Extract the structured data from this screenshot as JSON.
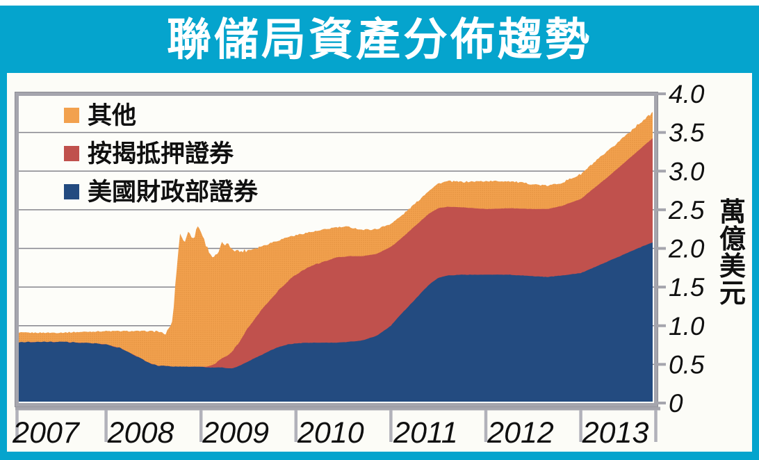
{
  "title": "聯儲局資產分佈趨勢",
  "colors": {
    "background": "#05A4CD",
    "panel": "#FCFCF7",
    "plot_bg": "#FDFDF9",
    "grid": "#84848C",
    "frame": "#A5A5AD",
    "frame_outline": "#8B8B93",
    "tick": "#B2B2BA",
    "text": "#101010",
    "title_text": "#FFFFFF",
    "orange_dot": "#E18F3E"
  },
  "chart_data": {
    "type": "area",
    "stacked": true,
    "title": "聯儲局資產分佈趨勢",
    "unit_label": "萬億美元",
    "xlim": [
      2007,
      2013.78
    ],
    "ylim": [
      0,
      4.0
    ],
    "grid": true,
    "legend_position": "top-left",
    "x_tick_labels": [
      "2007",
      "2008",
      "2009",
      "2010",
      "2011",
      "2012",
      "2013"
    ],
    "y_ticks": [
      0,
      0.5,
      1.0,
      1.5,
      2.0,
      2.5,
      3.0,
      3.5,
      4.0
    ],
    "y_tick_labels": [
      "0",
      "0.5",
      "1.0",
      "1.5",
      "2.0",
      "2.5",
      "3.0",
      "3.5",
      "4.0"
    ],
    "legend": [
      {
        "label": "其他",
        "color": "#F2A14E"
      },
      {
        "label": "按揭抵押證券",
        "color": "#C0514D"
      },
      {
        "label": "美國財政部證券",
        "color": "#234B80"
      }
    ],
    "x": [
      2007.0,
      2007.25,
      2007.5,
      2007.75,
      2008.0,
      2008.15,
      2008.3,
      2008.45,
      2008.55,
      2008.62,
      2008.7,
      2008.74,
      2008.78,
      2008.83,
      2008.87,
      2008.92,
      2008.96,
      2009.0,
      2009.06,
      2009.12,
      2009.17,
      2009.22,
      2009.28,
      2009.33,
      2009.4,
      2009.5,
      2009.58,
      2009.67,
      2009.75,
      2009.83,
      2009.92,
      2010.0,
      2010.1,
      2010.25,
      2010.4,
      2010.55,
      2010.7,
      2010.85,
      2011.0,
      2011.1,
      2011.2,
      2011.3,
      2011.4,
      2011.5,
      2011.6,
      2011.75,
      2012.0,
      2012.25,
      2012.5,
      2012.65,
      2012.8,
      2013.0,
      2013.15,
      2013.3,
      2013.45,
      2013.6,
      2013.78
    ],
    "series": [
      {
        "name": "美國財政部證券",
        "color": "#234B80",
        "values": [
          0.78,
          0.79,
          0.79,
          0.78,
          0.76,
          0.71,
          0.62,
          0.52,
          0.48,
          0.48,
          0.47,
          0.47,
          0.47,
          0.47,
          0.47,
          0.47,
          0.47,
          0.47,
          0.46,
          0.46,
          0.46,
          0.46,
          0.45,
          0.45,
          0.48,
          0.54,
          0.59,
          0.64,
          0.69,
          0.73,
          0.76,
          0.77,
          0.78,
          0.78,
          0.78,
          0.79,
          0.81,
          0.87,
          1.0,
          1.14,
          1.27,
          1.4,
          1.53,
          1.62,
          1.65,
          1.66,
          1.66,
          1.66,
          1.64,
          1.63,
          1.65,
          1.68,
          1.76,
          1.84,
          1.92,
          2.0,
          2.09
        ]
      },
      {
        "name": "按揭抵押證券",
        "color": "#C0514D",
        "values": [
          0,
          0,
          0,
          0,
          0,
          0,
          0,
          0,
          0,
          0,
          0,
          0,
          0,
          0,
          0,
          0,
          0,
          0,
          0.01,
          0.03,
          0.07,
          0.12,
          0.17,
          0.22,
          0.3,
          0.44,
          0.53,
          0.61,
          0.68,
          0.75,
          0.82,
          0.89,
          0.96,
          1.03,
          1.09,
          1.11,
          1.09,
          1.06,
          1.02,
          0.98,
          0.96,
          0.94,
          0.92,
          0.9,
          0.89,
          0.87,
          0.85,
          0.86,
          0.87,
          0.88,
          0.9,
          0.96,
          1.03,
          1.1,
          1.18,
          1.26,
          1.36
        ]
      },
      {
        "name": "其他",
        "color": "#F2A14E",
        "values": [
          0.13,
          0.12,
          0.12,
          0.14,
          0.17,
          0.22,
          0.31,
          0.41,
          0.45,
          0.4,
          0.58,
          1.23,
          1.73,
          1.6,
          1.78,
          1.63,
          1.83,
          1.75,
          1.55,
          1.4,
          1.38,
          1.48,
          1.43,
          1.33,
          1.18,
          1.0,
          0.89,
          0.79,
          0.71,
          0.63,
          0.57,
          0.51,
          0.46,
          0.42,
          0.4,
          0.38,
          0.34,
          0.32,
          0.3,
          0.29,
          0.29,
          0.29,
          0.3,
          0.32,
          0.33,
          0.33,
          0.36,
          0.35,
          0.32,
          0.3,
          0.3,
          0.32,
          0.33,
          0.33,
          0.34,
          0.34,
          0.33
        ]
      }
    ]
  }
}
